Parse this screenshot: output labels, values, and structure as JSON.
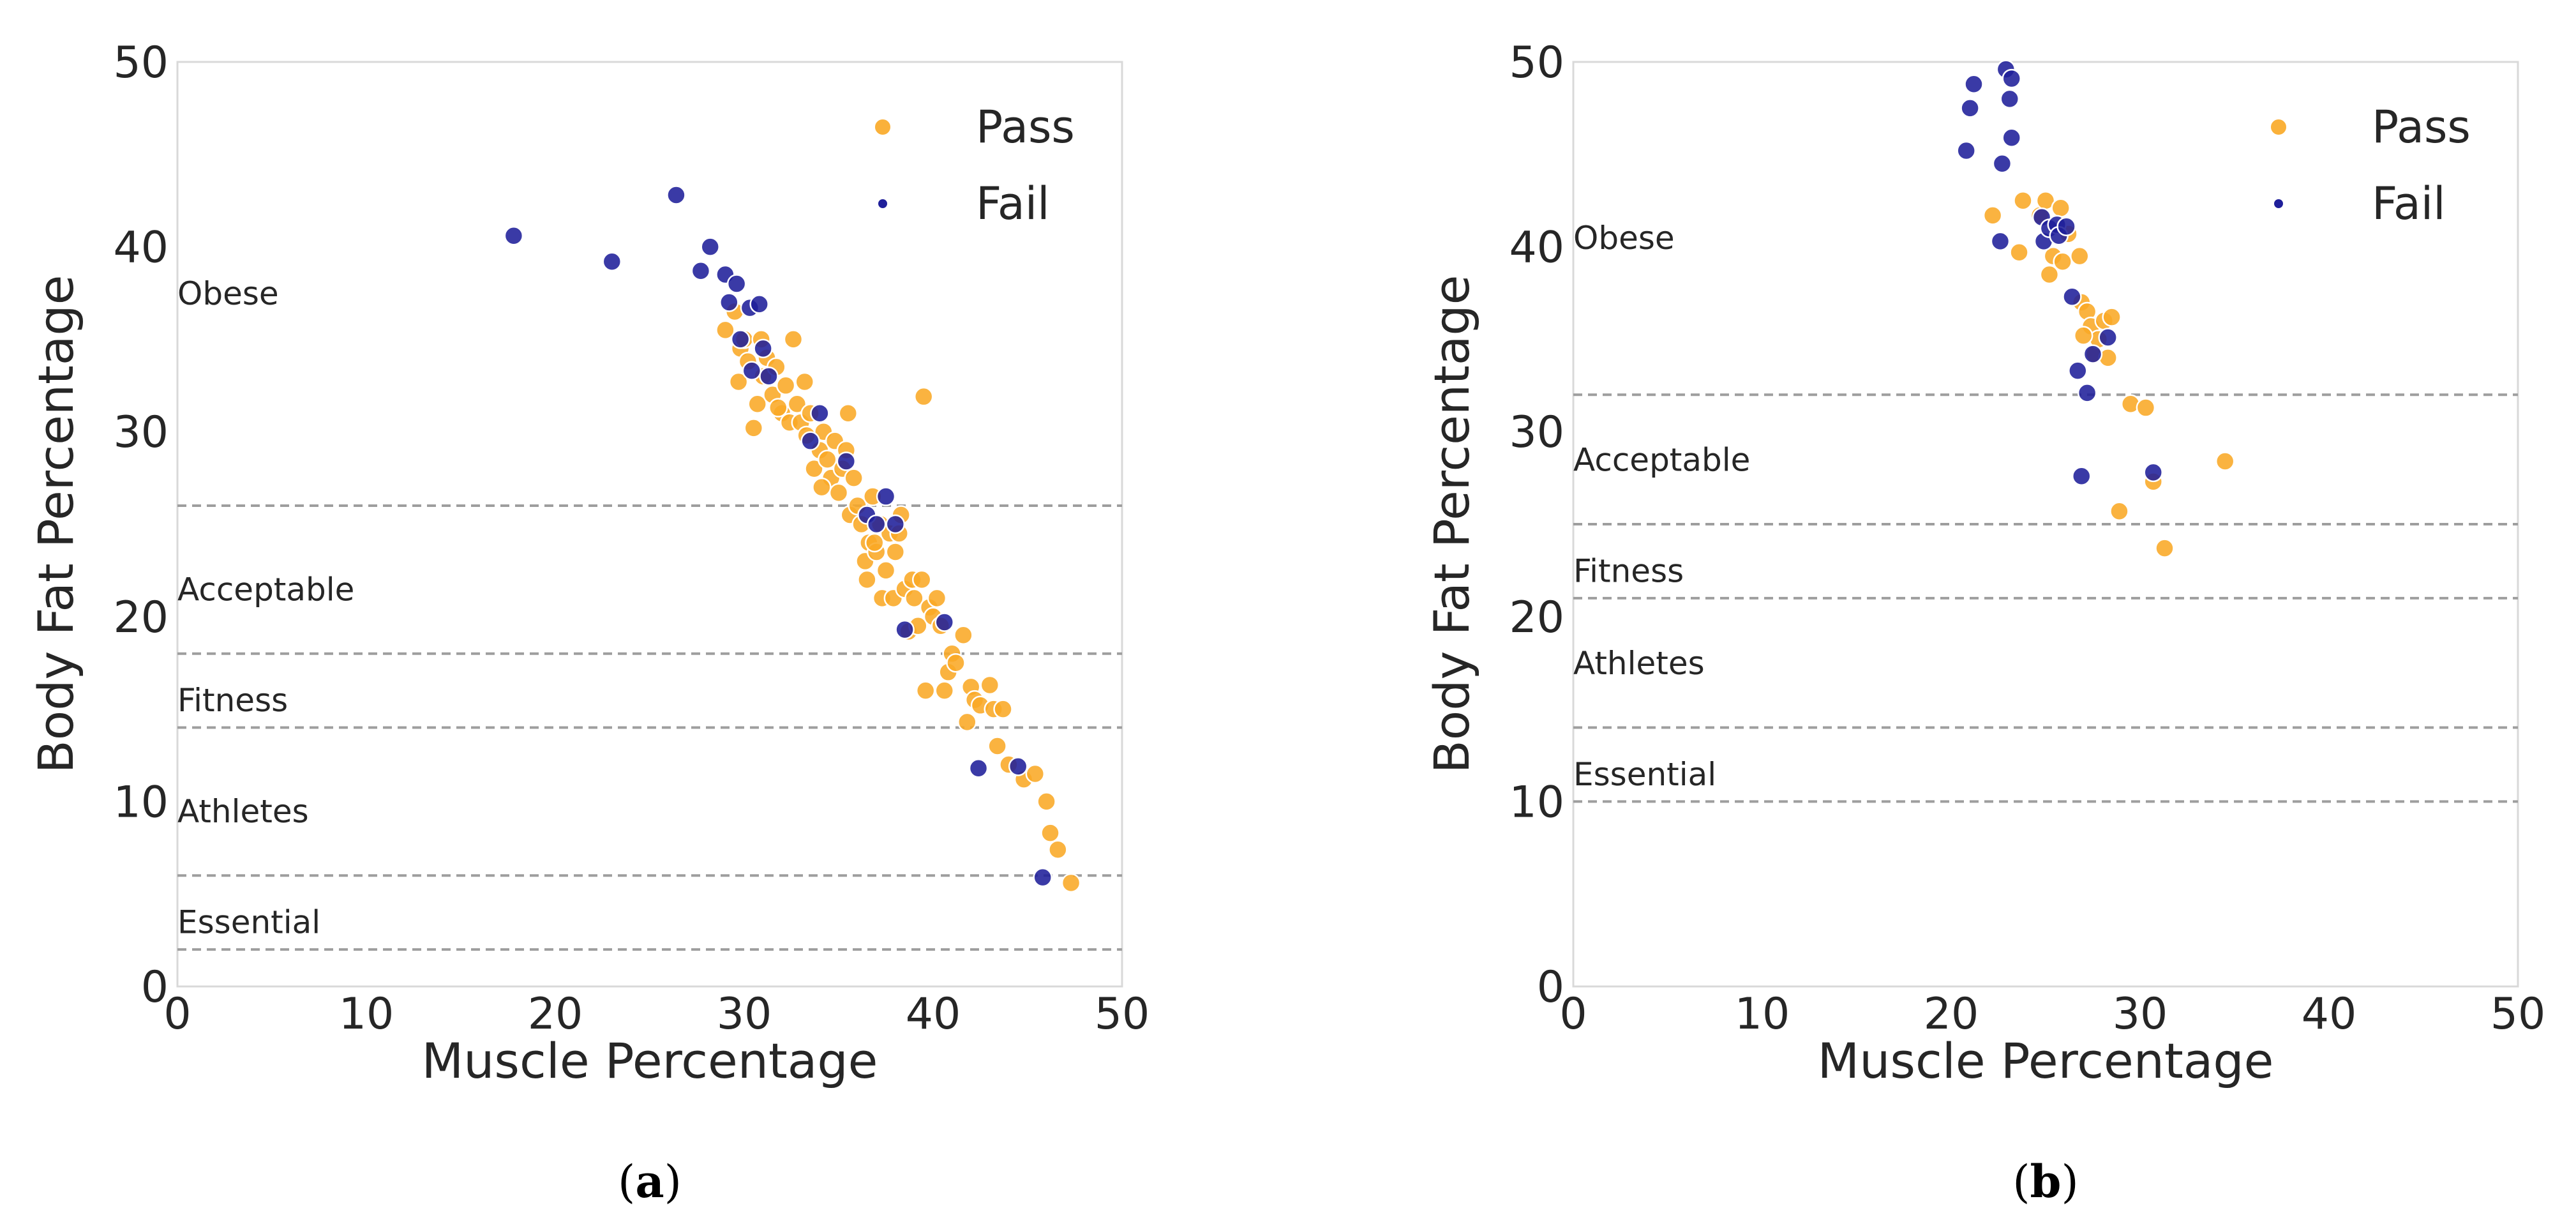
{
  "colors": {
    "pass": "#F9A825",
    "fail": "#1F1F9A",
    "threshold_line": "#9E9E9E",
    "frame": "#D9D9D9"
  },
  "chart_data": [
    {
      "type": "scatter",
      "panel_id": "a",
      "panel_label": {
        "open": "(",
        "letter": "a",
        "close": ")"
      },
      "xlabel": "Muscle Percentage",
      "ylabel": "Body Fat Percentage",
      "xlim": [
        0,
        50
      ],
      "ylim": [
        0,
        50
      ],
      "xticks": [
        0,
        10,
        20,
        30,
        40,
        50
      ],
      "yticks": [
        0,
        10,
        20,
        30,
        40,
        50
      ],
      "legend_position": "top-right",
      "thresholds": [
        26,
        18,
        14,
        6,
        2
      ],
      "zones": [
        {
          "label": "Obese",
          "y": 37.5
        },
        {
          "label": "Acceptable",
          "y": 21.5
        },
        {
          "label": "Fitness",
          "y": 15.5
        },
        {
          "label": "Athletes",
          "y": 9.5
        },
        {
          "label": "Essential",
          "y": 3.5
        }
      ],
      "series": [
        {
          "name": "Pass",
          "color": "#F9A825",
          "points": [
            [
              29.0,
              35.5
            ],
            [
              29.5,
              36.5
            ],
            [
              29.8,
              34.5
            ],
            [
              30.0,
              35.0
            ],
            [
              30.2,
              33.8
            ],
            [
              29.7,
              32.7
            ],
            [
              30.5,
              30.2
            ],
            [
              30.7,
              31.5
            ],
            [
              31.0,
              33.0
            ],
            [
              31.2,
              34.0
            ],
            [
              31.5,
              32.0
            ],
            [
              31.7,
              33.5
            ],
            [
              32.0,
              31.0
            ],
            [
              32.2,
              32.5
            ],
            [
              32.4,
              30.5
            ],
            [
              32.6,
              35.0
            ],
            [
              32.8,
              31.5
            ],
            [
              33.0,
              30.5
            ],
            [
              33.2,
              32.7
            ],
            [
              33.3,
              29.8
            ],
            [
              33.5,
              31.0
            ],
            [
              33.7,
              28.0
            ],
            [
              34.0,
              29.0
            ],
            [
              34.2,
              30.0
            ],
            [
              34.4,
              28.5
            ],
            [
              34.6,
              27.5
            ],
            [
              34.8,
              29.5
            ],
            [
              35.0,
              26.7
            ],
            [
              35.2,
              28.0
            ],
            [
              35.4,
              29.0
            ],
            [
              35.5,
              31.0
            ],
            [
              35.6,
              25.5
            ],
            [
              35.8,
              27.5
            ],
            [
              36.0,
              26.0
            ],
            [
              36.2,
              25.0
            ],
            [
              36.4,
              23.0
            ],
            [
              36.5,
              22.0
            ],
            [
              36.6,
              24.0
            ],
            [
              36.8,
              26.5
            ],
            [
              37.0,
              23.5
            ],
            [
              37.2,
              25.0
            ],
            [
              37.3,
              21.0
            ],
            [
              37.5,
              22.5
            ],
            [
              37.7,
              24.5
            ],
            [
              37.9,
              21.0
            ],
            [
              38.0,
              23.5
            ],
            [
              38.2,
              24.5
            ],
            [
              38.3,
              25.5
            ],
            [
              38.5,
              21.5
            ],
            [
              38.7,
              19.2
            ],
            [
              38.9,
              22.0
            ],
            [
              39.0,
              21.0
            ],
            [
              39.2,
              19.5
            ],
            [
              39.4,
              22.0
            ],
            [
              39.5,
              31.9
            ],
            [
              39.6,
              16.0
            ],
            [
              39.8,
              20.5
            ],
            [
              40.0,
              20.0
            ],
            [
              40.2,
              21.0
            ],
            [
              40.4,
              19.5
            ],
            [
              40.6,
              16.0
            ],
            [
              40.8,
              17.0
            ],
            [
              41.0,
              18.0
            ],
            [
              41.2,
              17.5
            ],
            [
              41.6,
              19.0
            ],
            [
              41.8,
              14.3
            ],
            [
              42.0,
              16.2
            ],
            [
              42.2,
              15.5
            ],
            [
              42.5,
              15.2
            ],
            [
              43.0,
              16.3
            ],
            [
              43.2,
              15.0
            ],
            [
              43.4,
              13.0
            ],
            [
              43.7,
              15.0
            ],
            [
              44.0,
              12.0
            ],
            [
              44.8,
              11.2
            ],
            [
              45.4,
              11.5
            ],
            [
              46.0,
              10.0
            ],
            [
              46.2,
              8.3
            ],
            [
              46.6,
              7.4
            ],
            [
              47.3,
              5.6
            ],
            [
              30.9,
              35.0
            ],
            [
              31.8,
              31.3
            ],
            [
              34.1,
              27.0
            ],
            [
              36.9,
              24.0
            ]
          ]
        },
        {
          "name": "Fail",
          "color": "#1F1F9A",
          "points": [
            [
              17.8,
              40.6
            ],
            [
              23.0,
              39.2
            ],
            [
              26.4,
              42.8
            ],
            [
              27.7,
              38.7
            ],
            [
              28.2,
              40.0
            ],
            [
              29.0,
              38.5
            ],
            [
              29.2,
              37.0
            ],
            [
              29.6,
              38.0
            ],
            [
              30.3,
              36.7
            ],
            [
              30.8,
              36.9
            ],
            [
              29.8,
              35.0
            ],
            [
              31.0,
              34.5
            ],
            [
              30.4,
              33.3
            ],
            [
              31.3,
              33.0
            ],
            [
              33.5,
              29.5
            ],
            [
              34.0,
              31.0
            ],
            [
              35.4,
              28.4
            ],
            [
              36.5,
              25.5
            ],
            [
              37.0,
              25.0
            ],
            [
              37.5,
              26.5
            ],
            [
              38.0,
              25.0
            ],
            [
              38.5,
              19.3
            ],
            [
              40.6,
              19.7
            ],
            [
              42.4,
              11.8
            ],
            [
              44.5,
              11.9
            ],
            [
              45.8,
              5.9
            ]
          ]
        }
      ]
    },
    {
      "type": "scatter",
      "panel_id": "b",
      "panel_label": {
        "open": "(",
        "letter": "b",
        "close": ")"
      },
      "xlabel": "Muscle Percentage",
      "ylabel": "Body Fat Percentage",
      "xlim": [
        0,
        50
      ],
      "ylim": [
        0,
        50
      ],
      "xticks": [
        0,
        10,
        20,
        30,
        40,
        50
      ],
      "yticks": [
        0,
        10,
        20,
        30,
        40,
        50
      ],
      "legend_position": "top-right",
      "thresholds": [
        32,
        25,
        21,
        14,
        10
      ],
      "zones": [
        {
          "label": "Obese",
          "y": 40.5
        },
        {
          "label": "Acceptable",
          "y": 28.5
        },
        {
          "label": "Fitness",
          "y": 22.5
        },
        {
          "label": "Athletes",
          "y": 17.5
        },
        {
          "label": "Essential",
          "y": 11.5
        }
      ],
      "series": [
        {
          "name": "Pass",
          "color": "#F9A825",
          "points": [
            [
              22.2,
              41.7
            ],
            [
              23.6,
              39.7
            ],
            [
              23.8,
              42.5
            ],
            [
              24.7,
              41.7
            ],
            [
              25.0,
              42.5
            ],
            [
              25.2,
              38.5
            ],
            [
              25.4,
              39.5
            ],
            [
              25.8,
              42.1
            ],
            [
              25.9,
              39.2
            ],
            [
              26.2,
              40.7
            ],
            [
              26.8,
              39.5
            ],
            [
              26.9,
              37.0
            ],
            [
              27.2,
              36.5
            ],
            [
              27.4,
              35.7
            ],
            [
              27.6,
              34.2
            ],
            [
              27.8,
              35.0
            ],
            [
              28.1,
              36.0
            ],
            [
              28.3,
              34.0
            ],
            [
              28.5,
              36.2
            ],
            [
              29.5,
              31.5
            ],
            [
              30.3,
              31.3
            ],
            [
              30.7,
              27.3
            ],
            [
              28.9,
              25.7
            ],
            [
              31.3,
              23.7
            ],
            [
              34.5,
              28.4
            ],
            [
              27.0,
              35.2
            ]
          ]
        },
        {
          "name": "Fail",
          "color": "#1F1F9A",
          "points": [
            [
              20.8,
              45.2
            ],
            [
              21.0,
              47.5
            ],
            [
              21.2,
              48.8
            ],
            [
              22.7,
              44.5
            ],
            [
              22.9,
              49.6
            ],
            [
              23.2,
              49.1
            ],
            [
              23.1,
              48.0
            ],
            [
              23.2,
              45.9
            ],
            [
              22.6,
              40.3
            ],
            [
              24.8,
              41.6
            ],
            [
              24.9,
              40.3
            ],
            [
              25.2,
              41.0
            ],
            [
              25.6,
              41.2
            ],
            [
              25.7,
              40.6
            ],
            [
              26.1,
              41.1
            ],
            [
              26.4,
              37.3
            ],
            [
              26.7,
              33.3
            ],
            [
              27.2,
              32.1
            ],
            [
              27.5,
              34.2
            ],
            [
              28.3,
              35.1
            ],
            [
              26.9,
              27.6
            ],
            [
              30.7,
              27.8
            ]
          ]
        }
      ]
    }
  ]
}
